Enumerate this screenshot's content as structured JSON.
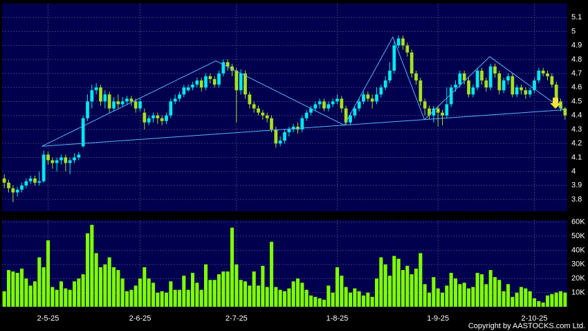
{
  "chart_data": [
    {
      "type": "candlestick",
      "up_color": "#00e8f0",
      "down_color": "#a8e020",
      "line_color": "#5ab4ff",
      "grid": true,
      "categories": [
        null,
        null,
        null,
        null,
        null,
        null,
        null,
        null,
        null,
        null,
        "2-5-25",
        null,
        null,
        null,
        null,
        null,
        null,
        null,
        null,
        null,
        null,
        null,
        null,
        null,
        null,
        null,
        null,
        null,
        null,
        null,
        null,
        "2-6-25",
        null,
        null,
        null,
        null,
        null,
        null,
        null,
        null,
        null,
        null,
        null,
        null,
        null,
        null,
        null,
        null,
        null,
        null,
        null,
        null,
        null,
        "2-7-25",
        null,
        null,
        null,
        null,
        null,
        null,
        null,
        null,
        null,
        null,
        null,
        null,
        null,
        null,
        null,
        null,
        null,
        null,
        null,
        null,
        null,
        null,
        "1-8-25",
        null,
        null,
        null,
        null,
        null,
        null,
        null,
        null,
        null,
        null,
        null,
        null,
        null,
        null,
        null,
        null,
        null,
        null,
        null,
        null,
        null,
        null,
        "1-9-25",
        null,
        null,
        null,
        null,
        null,
        null,
        null,
        null,
        null,
        null,
        null,
        null,
        null,
        null,
        null,
        null,
        null,
        null,
        null,
        null,
        null,
        "2-10-25",
        null,
        null,
        null,
        null,
        null,
        null,
        null
      ],
      "open": [
        3.95,
        3.92,
        3.88,
        3.85,
        3.87,
        3.9,
        3.93,
        3.95,
        3.92,
        3.93,
        4.12,
        4.08,
        4.06,
        4.08,
        4.1,
        4.06,
        4.08,
        4.1,
        4.18,
        4.38,
        4.5,
        4.58,
        4.6,
        4.5,
        4.55,
        4.45,
        4.5,
        4.48,
        4.5,
        4.52,
        4.5,
        4.45,
        4.42,
        4.35,
        4.38,
        4.4,
        4.38,
        4.36,
        4.4,
        4.5,
        4.52,
        4.55,
        4.58,
        4.6,
        4.62,
        4.65,
        4.6,
        4.68,
        4.66,
        4.62,
        4.7,
        4.78,
        4.75,
        4.72,
        4.58,
        4.7,
        4.55,
        4.48,
        4.45,
        4.42,
        4.4,
        4.38,
        4.3,
        4.2,
        4.22,
        4.28,
        4.3,
        4.32,
        4.3,
        4.38,
        4.42,
        4.45,
        4.48,
        4.5,
        4.45,
        4.48,
        4.5,
        4.52,
        4.45,
        4.35,
        4.4,
        4.45,
        4.5,
        4.55,
        4.52,
        4.5,
        4.55,
        4.6,
        4.65,
        4.72,
        4.9,
        4.95,
        4.9,
        4.85,
        4.7,
        4.65,
        4.5,
        4.45,
        4.4,
        4.45,
        4.42,
        4.4,
        4.48,
        4.6,
        4.62,
        4.7,
        4.65,
        4.55,
        4.6,
        4.72,
        4.65,
        4.6,
        4.75,
        4.7,
        4.58,
        4.65,
        4.68,
        4.55,
        4.6,
        4.58,
        4.55,
        4.58,
        4.65,
        4.72,
        4.7,
        4.68,
        4.62,
        4.5,
        4.45
      ],
      "high": [
        3.98,
        3.94,
        3.9,
        3.89,
        3.92,
        3.95,
        3.97,
        3.97,
        4.0,
        4.15,
        4.14,
        4.1,
        4.1,
        4.12,
        4.12,
        4.1,
        4.13,
        4.14,
        4.4,
        4.55,
        4.62,
        4.63,
        4.62,
        4.58,
        4.57,
        4.53,
        4.55,
        4.53,
        4.54,
        4.54,
        4.52,
        4.52,
        4.45,
        4.4,
        4.42,
        4.42,
        4.4,
        4.42,
        4.52,
        4.55,
        4.57,
        4.62,
        4.62,
        4.64,
        4.67,
        4.67,
        4.7,
        4.7,
        4.68,
        4.72,
        4.8,
        4.8,
        4.77,
        4.74,
        4.73,
        4.72,
        4.57,
        4.5,
        4.47,
        4.44,
        4.42,
        4.4,
        4.32,
        4.25,
        4.3,
        4.32,
        4.34,
        4.35,
        4.4,
        4.44,
        4.47,
        4.5,
        4.52,
        4.52,
        4.5,
        4.52,
        4.55,
        4.54,
        4.47,
        4.42,
        4.47,
        4.52,
        4.57,
        4.57,
        4.55,
        4.6,
        4.62,
        4.68,
        4.78,
        4.93,
        4.97,
        4.97,
        4.92,
        4.87,
        4.72,
        4.67,
        4.52,
        4.47,
        4.47,
        4.47,
        4.44,
        4.6,
        4.62,
        4.65,
        4.72,
        4.72,
        4.67,
        4.62,
        4.74,
        4.74,
        4.67,
        4.77,
        4.77,
        4.72,
        4.67,
        4.7,
        4.7,
        4.62,
        4.62,
        4.6,
        4.6,
        4.67,
        4.74,
        4.74,
        4.72,
        4.7,
        4.64,
        4.52,
        4.46
      ],
      "low": [
        3.88,
        3.85,
        3.78,
        3.82,
        3.85,
        3.88,
        3.91,
        3.9,
        3.9,
        3.92,
        4.05,
        4.02,
        4.0,
        4.05,
        4.0,
        3.98,
        4.06,
        4.08,
        4.17,
        4.36,
        4.45,
        4.55,
        4.47,
        4.45,
        4.42,
        4.43,
        4.45,
        4.46,
        4.48,
        4.47,
        4.42,
        4.43,
        4.3,
        4.33,
        4.35,
        4.34,
        4.33,
        4.34,
        4.38,
        4.48,
        4.5,
        4.53,
        4.57,
        4.58,
        4.6,
        4.57,
        4.58,
        4.63,
        4.6,
        4.6,
        4.68,
        4.72,
        4.68,
        4.35,
        4.55,
        4.52,
        4.45,
        4.42,
        4.4,
        4.37,
        4.35,
        4.28,
        4.17,
        4.18,
        4.2,
        4.25,
        4.28,
        4.27,
        4.28,
        4.36,
        4.4,
        4.43,
        4.45,
        4.43,
        4.43,
        4.46,
        4.48,
        4.42,
        4.33,
        4.33,
        4.38,
        4.43,
        4.48,
        4.5,
        4.45,
        4.48,
        4.53,
        4.58,
        4.63,
        4.7,
        4.88,
        4.87,
        4.82,
        4.67,
        4.62,
        4.47,
        4.4,
        4.37,
        4.35,
        4.32,
        4.33,
        4.38,
        4.46,
        4.57,
        4.6,
        4.62,
        4.53,
        4.53,
        4.58,
        4.62,
        4.57,
        4.58,
        4.67,
        4.55,
        4.56,
        4.62,
        4.53,
        4.53,
        4.55,
        4.52,
        4.53,
        4.56,
        4.63,
        4.68,
        4.65,
        4.6,
        4.48,
        4.43,
        4.37
      ],
      "close": [
        3.92,
        3.88,
        3.85,
        3.87,
        3.9,
        3.93,
        3.95,
        3.92,
        3.93,
        4.12,
        4.08,
        4.06,
        4.08,
        4.1,
        4.06,
        4.08,
        4.1,
        4.12,
        4.38,
        4.5,
        4.58,
        4.6,
        4.5,
        4.55,
        4.45,
        4.5,
        4.48,
        4.5,
        4.52,
        4.5,
        4.45,
        4.5,
        4.35,
        4.38,
        4.4,
        4.38,
        4.36,
        4.4,
        4.5,
        4.52,
        4.55,
        4.6,
        4.6,
        4.62,
        4.65,
        4.6,
        4.68,
        4.66,
        4.62,
        4.7,
        4.78,
        4.75,
        4.72,
        4.58,
        4.7,
        4.55,
        4.48,
        4.45,
        4.42,
        4.4,
        4.38,
        4.3,
        4.2,
        4.22,
        4.28,
        4.3,
        4.32,
        4.3,
        4.38,
        4.42,
        4.45,
        4.48,
        4.5,
        4.45,
        4.48,
        4.5,
        4.52,
        4.45,
        4.35,
        4.4,
        4.45,
        4.5,
        4.55,
        4.52,
        4.5,
        4.55,
        4.6,
        4.65,
        4.72,
        4.9,
        4.95,
        4.9,
        4.85,
        4.7,
        4.65,
        4.5,
        4.45,
        4.4,
        4.45,
        4.42,
        4.4,
        4.48,
        4.6,
        4.62,
        4.7,
        4.65,
        4.55,
        4.6,
        4.72,
        4.65,
        4.6,
        4.75,
        4.7,
        4.58,
        4.65,
        4.68,
        4.55,
        4.6,
        4.58,
        4.55,
        4.58,
        4.65,
        4.72,
        4.7,
        4.68,
        4.62,
        4.5,
        4.45,
        4.4
      ],
      "lines": [
        {
          "x": [
            8.6,
            48.3,
            77.6,
            88.7,
            95.9,
            110.8,
            127.6
          ],
          "y": [
            4.18,
            4.79,
            4.33,
            4.96,
            4.37,
            4.82,
            4.44
          ]
        },
        {
          "x": [
            8.6,
            127.6
          ],
          "y": [
            4.18,
            4.44
          ]
        }
      ],
      "ylim": [
        3.716,
        5.2
      ],
      "yticks": [
        3.8,
        3.9,
        4,
        4.1,
        4.2,
        4.3,
        4.4,
        4.5,
        4.6,
        4.7,
        4.8,
        4.9,
        5,
        5.1
      ]
    },
    {
      "type": "bar",
      "color": "#80ff00",
      "grid": true,
      "values": [
        11000,
        26000,
        25000,
        24000,
        27000,
        20000,
        15000,
        18000,
        35000,
        28000,
        47000,
        14000,
        12000,
        18000,
        13000,
        12000,
        18000,
        20000,
        23000,
        52000,
        58000,
        38000,
        28000,
        30000,
        35000,
        28000,
        26000,
        20000,
        11000,
        12000,
        15000,
        20000,
        28000,
        20000,
        17000,
        10000,
        11000,
        10000,
        18000,
        12000,
        12000,
        22000,
        12000,
        24000,
        17000,
        12000,
        30000,
        19000,
        19000,
        23000,
        25000,
        25000,
        56000,
        30000,
        19000,
        18000,
        15000,
        25000,
        15000,
        29000,
        14000,
        46000,
        14000,
        12000,
        11000,
        13000,
        18000,
        20000,
        17000,
        12000,
        8000,
        7000,
        6000,
        5000,
        15000,
        10000,
        28000,
        22000,
        14000,
        10000,
        13000,
        11000,
        8000,
        10000,
        7000,
        20000,
        35000,
        30000,
        22000,
        36000,
        34000,
        26000,
        29000,
        23000,
        27000,
        38000,
        16000,
        10000,
        21000,
        13000,
        10000,
        15000,
        24000,
        20000,
        16000,
        17000,
        13000,
        14000,
        24000,
        23000,
        16000,
        26000,
        21000,
        19000,
        11000,
        16000,
        7000,
        10000,
        14000,
        13000,
        11000,
        6000,
        4000,
        3000,
        8000,
        9000,
        10000,
        11000,
        10000
      ],
      "ylim": [
        0,
        61300
      ],
      "yticks": [
        {
          "value": 10000,
          "label": "10K"
        },
        {
          "value": 20000,
          "label": "20K"
        },
        {
          "value": 30000,
          "label": "30K"
        },
        {
          "value": 40000,
          "label": "40K"
        },
        {
          "value": 50000,
          "label": "50K"
        },
        {
          "value": 60000,
          "label": "60K"
        }
      ]
    }
  ],
  "footer": "Copyright by AASTOCKS.com Ltd."
}
